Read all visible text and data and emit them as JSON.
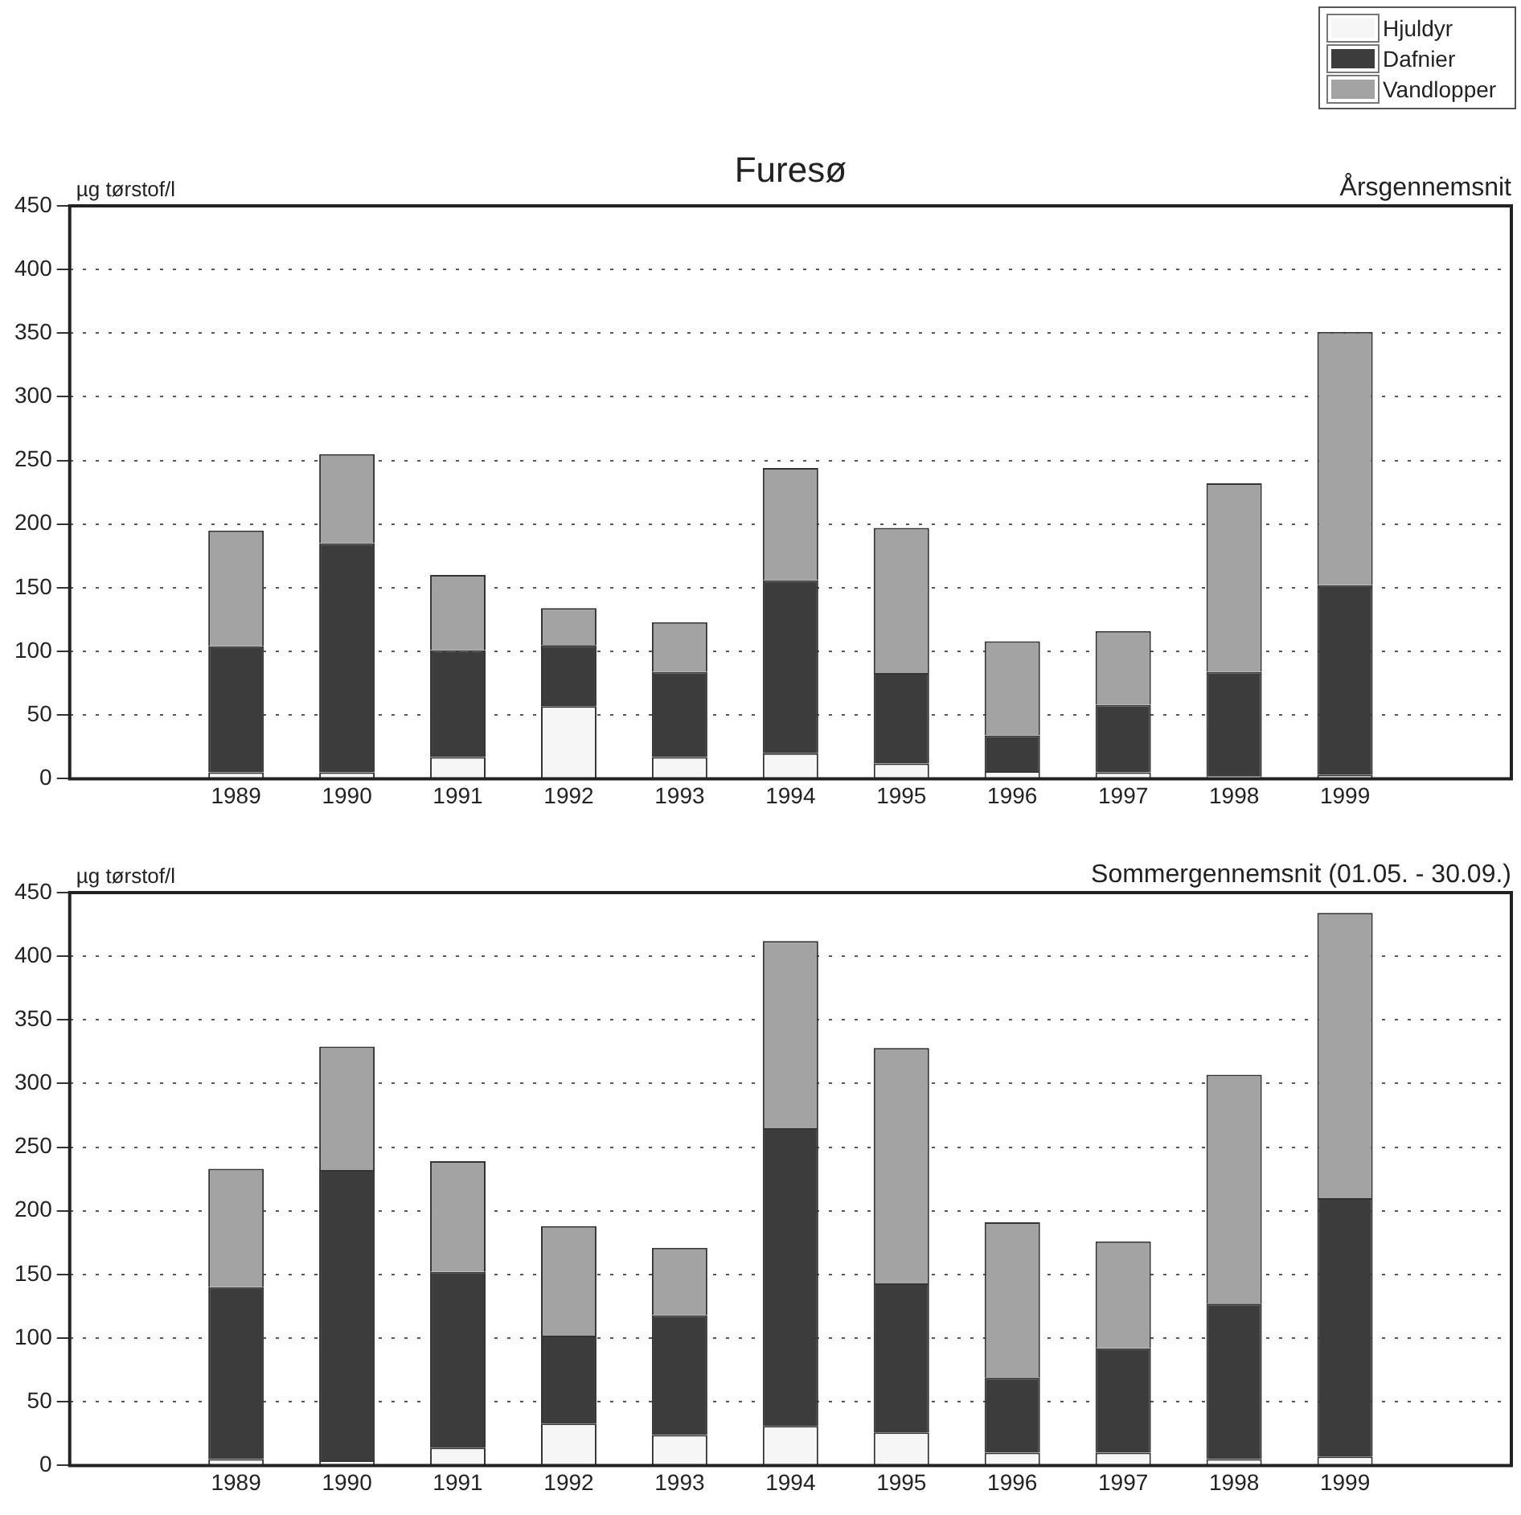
{
  "chart_data": [
    {
      "type": "bar",
      "title": "Furesø",
      "ylabel": "µg tørstof/l",
      "subtitle": "Årsgennemsnit",
      "stacked": true,
      "categories": [
        null,
        "1989",
        "1990",
        "1991",
        "1992",
        "1993",
        "1994",
        "1995",
        "1996",
        "1997",
        "1998",
        "1999",
        null
      ],
      "ylim": [
        0,
        450
      ],
      "yticks": [
        0,
        50,
        100,
        150,
        200,
        250,
        300,
        350,
        400,
        450
      ],
      "grid": "y",
      "legend": "top right",
      "series": [
        {
          "name": "Hjuldyr",
          "color": "#f6f6f6",
          "values": [
            null,
            5,
            5,
            17,
            57,
            17,
            20,
            12,
            6,
            5,
            2,
            3,
            null
          ]
        },
        {
          "name": "Dafnier",
          "color": "#3c3c3c",
          "values": [
            null,
            99,
            180,
            84,
            48,
            67,
            136,
            71,
            28,
            53,
            82,
            149,
            null
          ]
        },
        {
          "name": "Vandlopper",
          "color": "#a3a3a3",
          "values": [
            null,
            91,
            70,
            59,
            29,
            39,
            88,
            114,
            74,
            58,
            148,
            199,
            null
          ]
        }
      ]
    },
    {
      "type": "bar",
      "ylabel": "µg tørstof/l",
      "subtitle": "Sommergennemsnit (01.05. - 30.09.)",
      "stacked": true,
      "categories": [
        null,
        "1989",
        "1990",
        "1991",
        "1992",
        "1993",
        "1994",
        "1995",
        "1996",
        "1997",
        "1998",
        "1999",
        null
      ],
      "ylim": [
        0,
        450
      ],
      "yticks": [
        0,
        50,
        100,
        150,
        200,
        250,
        300,
        350,
        400,
        450
      ],
      "grid": "y",
      "legend": false,
      "series": [
        {
          "color": "#f6f6f6",
          "values": [
            null,
            5,
            4,
            14,
            33,
            24,
            31,
            26,
            10,
            10,
            5,
            7,
            null
          ]
        },
        {
          "color": "#3c3c3c",
          "values": [
            null,
            135,
            228,
            138,
            69,
            94,
            234,
            117,
            59,
            82,
            122,
            203,
            null
          ]
        },
        {
          "color": "#a3a3a3",
          "values": [
            null,
            93,
            97,
            87,
            86,
            53,
            147,
            185,
            122,
            84,
            180,
            224,
            null
          ]
        }
      ]
    }
  ]
}
